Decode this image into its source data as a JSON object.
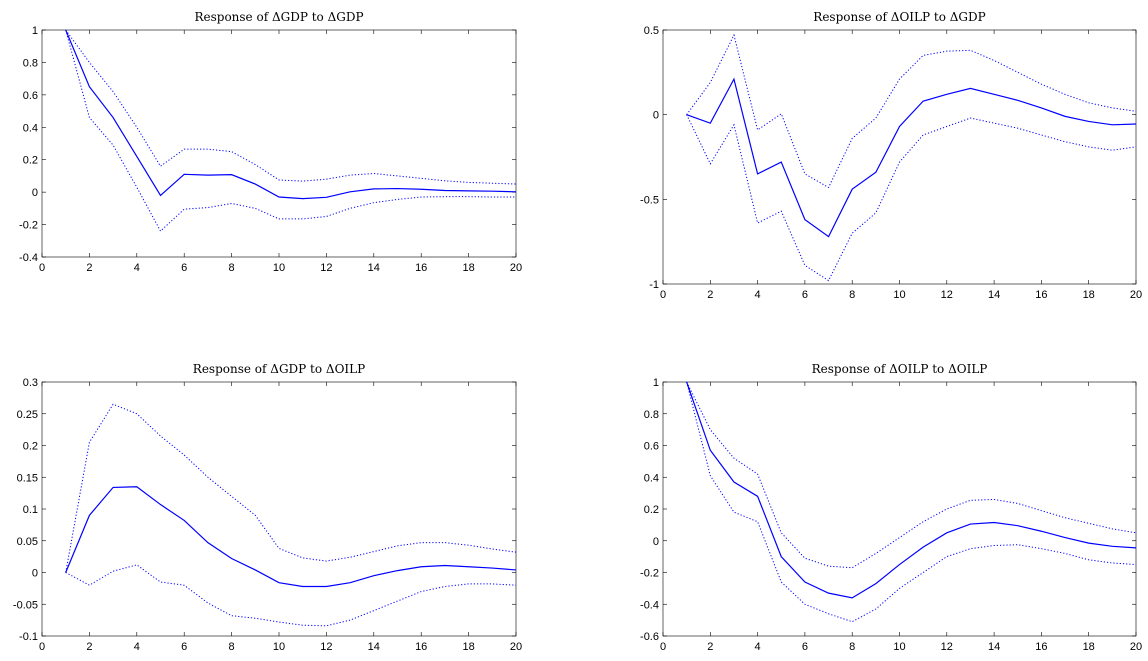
{
  "chart_data": [
    {
      "type": "line",
      "title": "Response of ΔGDP to ΔGDP",
      "x": [
        1,
        2,
        3,
        4,
        5,
        6,
        7,
        8,
        9,
        10,
        11,
        12,
        13,
        14,
        15,
        16,
        17,
        18,
        19,
        20
      ],
      "series": [
        {
          "role": "response",
          "values": [
            1.0,
            0.65,
            0.46,
            0.22,
            -0.02,
            0.11,
            0.105,
            0.108,
            0.05,
            -0.03,
            -0.04,
            -0.032,
            0.002,
            0.02,
            0.022,
            0.018,
            0.01,
            0.008,
            0.006,
            0.002
          ]
        },
        {
          "role": "upper",
          "values": [
            1.0,
            0.8,
            0.62,
            0.4,
            0.16,
            0.265,
            0.265,
            0.25,
            0.17,
            0.075,
            0.068,
            0.08,
            0.105,
            0.115,
            0.1,
            0.085,
            0.07,
            0.06,
            0.055,
            0.05
          ]
        },
        {
          "role": "lower",
          "values": [
            1.0,
            0.46,
            0.29,
            0.03,
            -0.24,
            -0.105,
            -0.095,
            -0.07,
            -0.1,
            -0.165,
            -0.165,
            -0.15,
            -0.1,
            -0.065,
            -0.045,
            -0.03,
            -0.028,
            -0.028,
            -0.03,
            -0.03
          ]
        }
      ],
      "xlim": [
        0,
        20
      ],
      "ylim": [
        -0.4,
        1
      ],
      "xticks": [
        0,
        2,
        4,
        6,
        8,
        10,
        12,
        14,
        16,
        18,
        20
      ],
      "yticks": [
        -0.4,
        -0.2,
        0,
        0.2,
        0.4,
        0.6,
        0.8,
        1
      ],
      "ytick_labels": [
        "-0.4",
        "-0.2",
        "0",
        "0.2",
        "0.4",
        "0.6",
        "0.8",
        "1"
      ],
      "color": "#0000ff",
      "grid": false
    },
    {
      "type": "line",
      "title": "Response of ΔOILP to ΔGDP",
      "x": [
        1,
        2,
        3,
        4,
        5,
        6,
        7,
        8,
        9,
        10,
        11,
        12,
        13,
        14,
        15,
        16,
        17,
        18,
        19,
        20
      ],
      "series": [
        {
          "role": "response",
          "values": [
            0.0,
            -0.05,
            0.21,
            -0.35,
            -0.28,
            -0.62,
            -0.72,
            -0.44,
            -0.34,
            -0.07,
            0.08,
            0.12,
            0.155,
            0.12,
            0.085,
            0.04,
            -0.01,
            -0.04,
            -0.06,
            -0.055
          ]
        },
        {
          "role": "upper",
          "values": [
            0.0,
            0.19,
            0.47,
            -0.09,
            0.005,
            -0.35,
            -0.43,
            -0.14,
            -0.02,
            0.21,
            0.35,
            0.375,
            0.38,
            0.32,
            0.25,
            0.18,
            0.12,
            0.07,
            0.04,
            0.02
          ]
        },
        {
          "role": "lower",
          "values": [
            0.0,
            -0.29,
            -0.06,
            -0.64,
            -0.57,
            -0.89,
            -0.98,
            -0.7,
            -0.58,
            -0.28,
            -0.12,
            -0.07,
            -0.02,
            -0.05,
            -0.08,
            -0.12,
            -0.16,
            -0.19,
            -0.21,
            -0.19
          ]
        }
      ],
      "xlim": [
        0,
        20
      ],
      "ylim": [
        -1,
        0.5
      ],
      "xticks": [
        0,
        2,
        4,
        6,
        8,
        10,
        12,
        14,
        16,
        18,
        20
      ],
      "yticks": [
        -1,
        -0.5,
        0,
        0.5
      ],
      "ytick_labels": [
        "-1",
        "-0.5",
        "0",
        "0.5"
      ],
      "color": "#0000ff",
      "grid": false
    },
    {
      "type": "line",
      "title": "Response of ΔGDP to ΔOILP",
      "x": [
        1,
        2,
        3,
        4,
        5,
        6,
        7,
        8,
        9,
        10,
        11,
        12,
        13,
        14,
        15,
        16,
        17,
        18,
        19,
        20
      ],
      "series": [
        {
          "role": "response",
          "values": [
            0.0,
            0.09,
            0.134,
            0.135,
            0.107,
            0.082,
            0.047,
            0.022,
            0.004,
            -0.016,
            -0.022,
            -0.022,
            -0.016,
            -0.005,
            0.003,
            0.009,
            0.011,
            0.009,
            0.007,
            0.004
          ]
        },
        {
          "role": "upper",
          "values": [
            0.0,
            0.205,
            0.265,
            0.25,
            0.215,
            0.185,
            0.15,
            0.12,
            0.09,
            0.038,
            0.023,
            0.018,
            0.024,
            0.033,
            0.042,
            0.047,
            0.047,
            0.043,
            0.037,
            0.032
          ]
        },
        {
          "role": "lower",
          "values": [
            0.0,
            -0.02,
            0.002,
            0.012,
            -0.015,
            -0.02,
            -0.048,
            -0.068,
            -0.072,
            -0.078,
            -0.083,
            -0.084,
            -0.075,
            -0.06,
            -0.045,
            -0.03,
            -0.022,
            -0.018,
            -0.018,
            -0.02
          ]
        }
      ],
      "xlim": [
        0,
        20
      ],
      "ylim": [
        -0.1,
        0.3
      ],
      "xticks": [
        0,
        2,
        4,
        6,
        8,
        10,
        12,
        14,
        16,
        18,
        20
      ],
      "yticks": [
        -0.1,
        -0.05,
        0,
        0.05,
        0.1,
        0.15,
        0.2,
        0.25,
        0.3
      ],
      "ytick_labels": [
        "-0.1",
        "-0.05",
        "0",
        "0.05",
        "0.1",
        "0.15",
        "0.2",
        "0.25",
        "0.3"
      ],
      "color": "#0000ff",
      "grid": false
    },
    {
      "type": "line",
      "title": "Response of ΔOILP to ΔOILP",
      "x": [
        1,
        2,
        3,
        4,
        5,
        6,
        7,
        8,
        9,
        10,
        11,
        12,
        13,
        14,
        15,
        16,
        17,
        18,
        19,
        20
      ],
      "series": [
        {
          "role": "response",
          "values": [
            1.0,
            0.57,
            0.37,
            0.28,
            -0.1,
            -0.26,
            -0.33,
            -0.36,
            -0.27,
            -0.15,
            -0.04,
            0.05,
            0.105,
            0.115,
            0.095,
            0.06,
            0.02,
            -0.015,
            -0.035,
            -0.045
          ]
        },
        {
          "role": "upper",
          "values": [
            1.0,
            0.7,
            0.52,
            0.42,
            0.05,
            -0.11,
            -0.16,
            -0.17,
            -0.08,
            0.02,
            0.12,
            0.2,
            0.255,
            0.26,
            0.235,
            0.19,
            0.145,
            0.11,
            0.075,
            0.05
          ]
        },
        {
          "role": "lower",
          "values": [
            1.0,
            0.41,
            0.18,
            0.12,
            -0.26,
            -0.4,
            -0.46,
            -0.51,
            -0.43,
            -0.3,
            -0.2,
            -0.1,
            -0.05,
            -0.03,
            -0.025,
            -0.05,
            -0.08,
            -0.12,
            -0.14,
            -0.15
          ]
        }
      ],
      "xlim": [
        0,
        20
      ],
      "ylim": [
        -0.6,
        1
      ],
      "xticks": [
        0,
        2,
        4,
        6,
        8,
        10,
        12,
        14,
        16,
        18,
        20
      ],
      "yticks": [
        -0.6,
        -0.4,
        -0.2,
        0,
        0.2,
        0.4,
        0.6,
        0.8,
        1
      ],
      "ytick_labels": [
        "-0.6",
        "-0.4",
        "-0.2",
        "0",
        "0.2",
        "0.4",
        "0.6",
        "0.8",
        "1"
      ],
      "color": "#0000ff",
      "grid": false
    }
  ]
}
